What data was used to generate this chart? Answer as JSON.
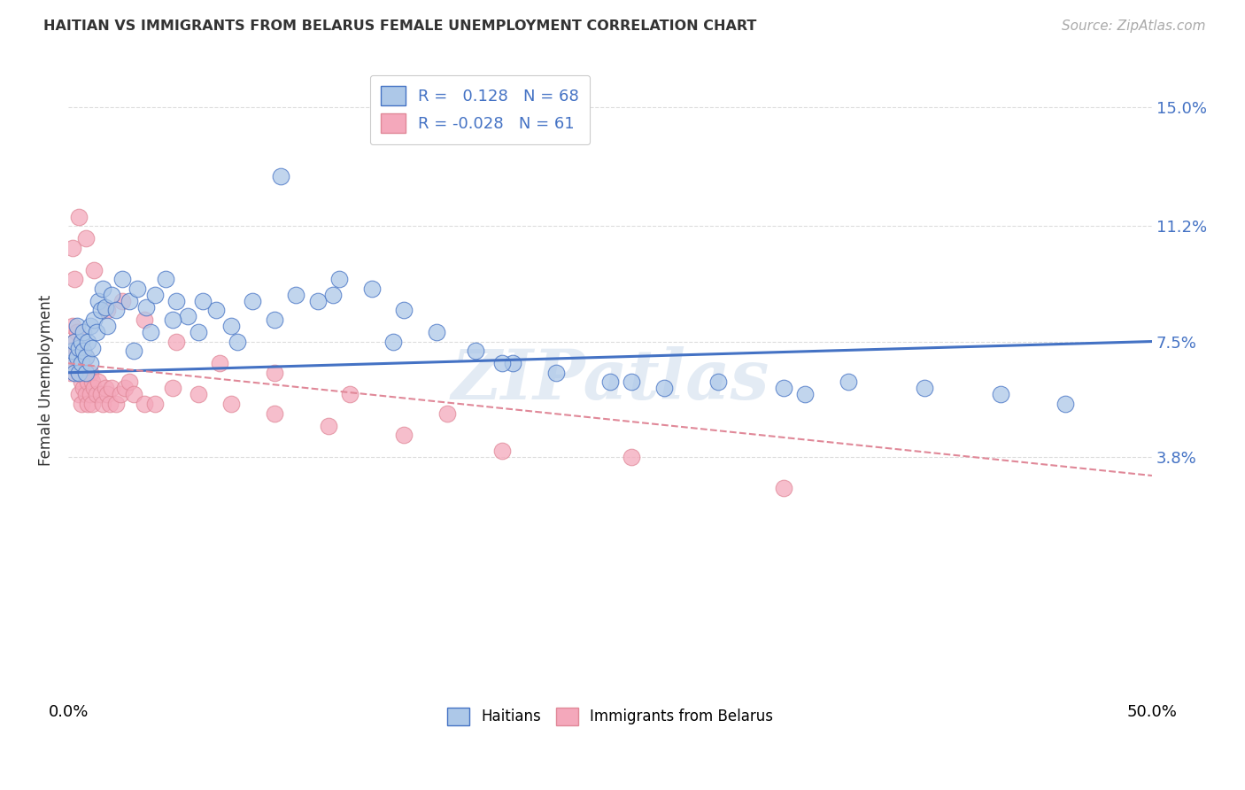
{
  "title": "HAITIAN VS IMMIGRANTS FROM BELARUS FEMALE UNEMPLOYMENT CORRELATION CHART",
  "source": "Source: ZipAtlas.com",
  "ylabel": "Female Unemployment",
  "ytick_labels": [
    "3.8%",
    "7.5%",
    "11.2%",
    "15.0%"
  ],
  "ytick_values": [
    0.038,
    0.075,
    0.112,
    0.15
  ],
  "xlim": [
    0.0,
    0.5
  ],
  "ylim": [
    -0.04,
    0.165
  ],
  "color_haitian": "#adc8e8",
  "color_belarus": "#f4a8bb",
  "color_trend_haitian": "#4472c4",
  "color_trend_belarus": "#e08898",
  "color_right_axis": "#4472c4",
  "watermark": "ZIPatlas",
  "background_color": "#ffffff",
  "grid_color": "#dddddd",
  "trend_haitian_x0": 0.0,
  "trend_haitian_y0": 0.065,
  "trend_haitian_x1": 0.5,
  "trend_haitian_y1": 0.075,
  "trend_belarus_x0": 0.0,
  "trend_belarus_y0": 0.068,
  "trend_belarus_x1": 0.5,
  "trend_belarus_y1": 0.032,
  "haitian_x": [
    0.001,
    0.002,
    0.003,
    0.003,
    0.004,
    0.004,
    0.005,
    0.005,
    0.006,
    0.006,
    0.007,
    0.007,
    0.008,
    0.008,
    0.009,
    0.01,
    0.01,
    0.011,
    0.012,
    0.013,
    0.014,
    0.015,
    0.016,
    0.017,
    0.018,
    0.02,
    0.022,
    0.025,
    0.028,
    0.032,
    0.036,
    0.04,
    0.045,
    0.05,
    0.055,
    0.06,
    0.068,
    0.075,
    0.085,
    0.095,
    0.105,
    0.115,
    0.125,
    0.14,
    0.155,
    0.17,
    0.188,
    0.205,
    0.225,
    0.25,
    0.275,
    0.3,
    0.33,
    0.36,
    0.395,
    0.43,
    0.46,
    0.03,
    0.038,
    0.048,
    0.062,
    0.078,
    0.098,
    0.122,
    0.15,
    0.2,
    0.26,
    0.34
  ],
  "haitian_y": [
    0.068,
    0.072,
    0.065,
    0.075,
    0.07,
    0.08,
    0.065,
    0.073,
    0.068,
    0.075,
    0.072,
    0.078,
    0.065,
    0.07,
    0.075,
    0.068,
    0.08,
    0.073,
    0.082,
    0.078,
    0.088,
    0.085,
    0.092,
    0.086,
    0.08,
    0.09,
    0.085,
    0.095,
    0.088,
    0.092,
    0.086,
    0.09,
    0.095,
    0.088,
    0.083,
    0.078,
    0.085,
    0.08,
    0.088,
    0.082,
    0.09,
    0.088,
    0.095,
    0.092,
    0.085,
    0.078,
    0.072,
    0.068,
    0.065,
    0.062,
    0.06,
    0.062,
    0.06,
    0.062,
    0.06,
    0.058,
    0.055,
    0.072,
    0.078,
    0.082,
    0.088,
    0.075,
    0.128,
    0.09,
    0.075,
    0.068,
    0.062,
    0.058
  ],
  "belarus_x": [
    0.001,
    0.001,
    0.002,
    0.002,
    0.003,
    0.003,
    0.003,
    0.004,
    0.004,
    0.005,
    0.005,
    0.005,
    0.006,
    0.006,
    0.006,
    0.007,
    0.007,
    0.008,
    0.008,
    0.009,
    0.009,
    0.01,
    0.01,
    0.011,
    0.011,
    0.012,
    0.013,
    0.014,
    0.015,
    0.016,
    0.017,
    0.018,
    0.019,
    0.02,
    0.022,
    0.024,
    0.026,
    0.028,
    0.03,
    0.035,
    0.04,
    0.048,
    0.06,
    0.075,
    0.095,
    0.12,
    0.155,
    0.2,
    0.26,
    0.33,
    0.005,
    0.008,
    0.012,
    0.018,
    0.025,
    0.035,
    0.05,
    0.07,
    0.095,
    0.13,
    0.175
  ],
  "belarus_y": [
    0.072,
    0.065,
    0.105,
    0.08,
    0.095,
    0.075,
    0.068,
    0.072,
    0.078,
    0.068,
    0.058,
    0.065,
    0.07,
    0.062,
    0.055,
    0.06,
    0.065,
    0.058,
    0.07,
    0.062,
    0.055,
    0.065,
    0.058,
    0.062,
    0.055,
    0.06,
    0.058,
    0.062,
    0.058,
    0.055,
    0.06,
    0.058,
    0.055,
    0.06,
    0.055,
    0.058,
    0.06,
    0.062,
    0.058,
    0.055,
    0.055,
    0.06,
    0.058,
    0.055,
    0.052,
    0.048,
    0.045,
    0.04,
    0.038,
    0.028,
    0.115,
    0.108,
    0.098,
    0.085,
    0.088,
    0.082,
    0.075,
    0.068,
    0.065,
    0.058,
    0.052
  ]
}
